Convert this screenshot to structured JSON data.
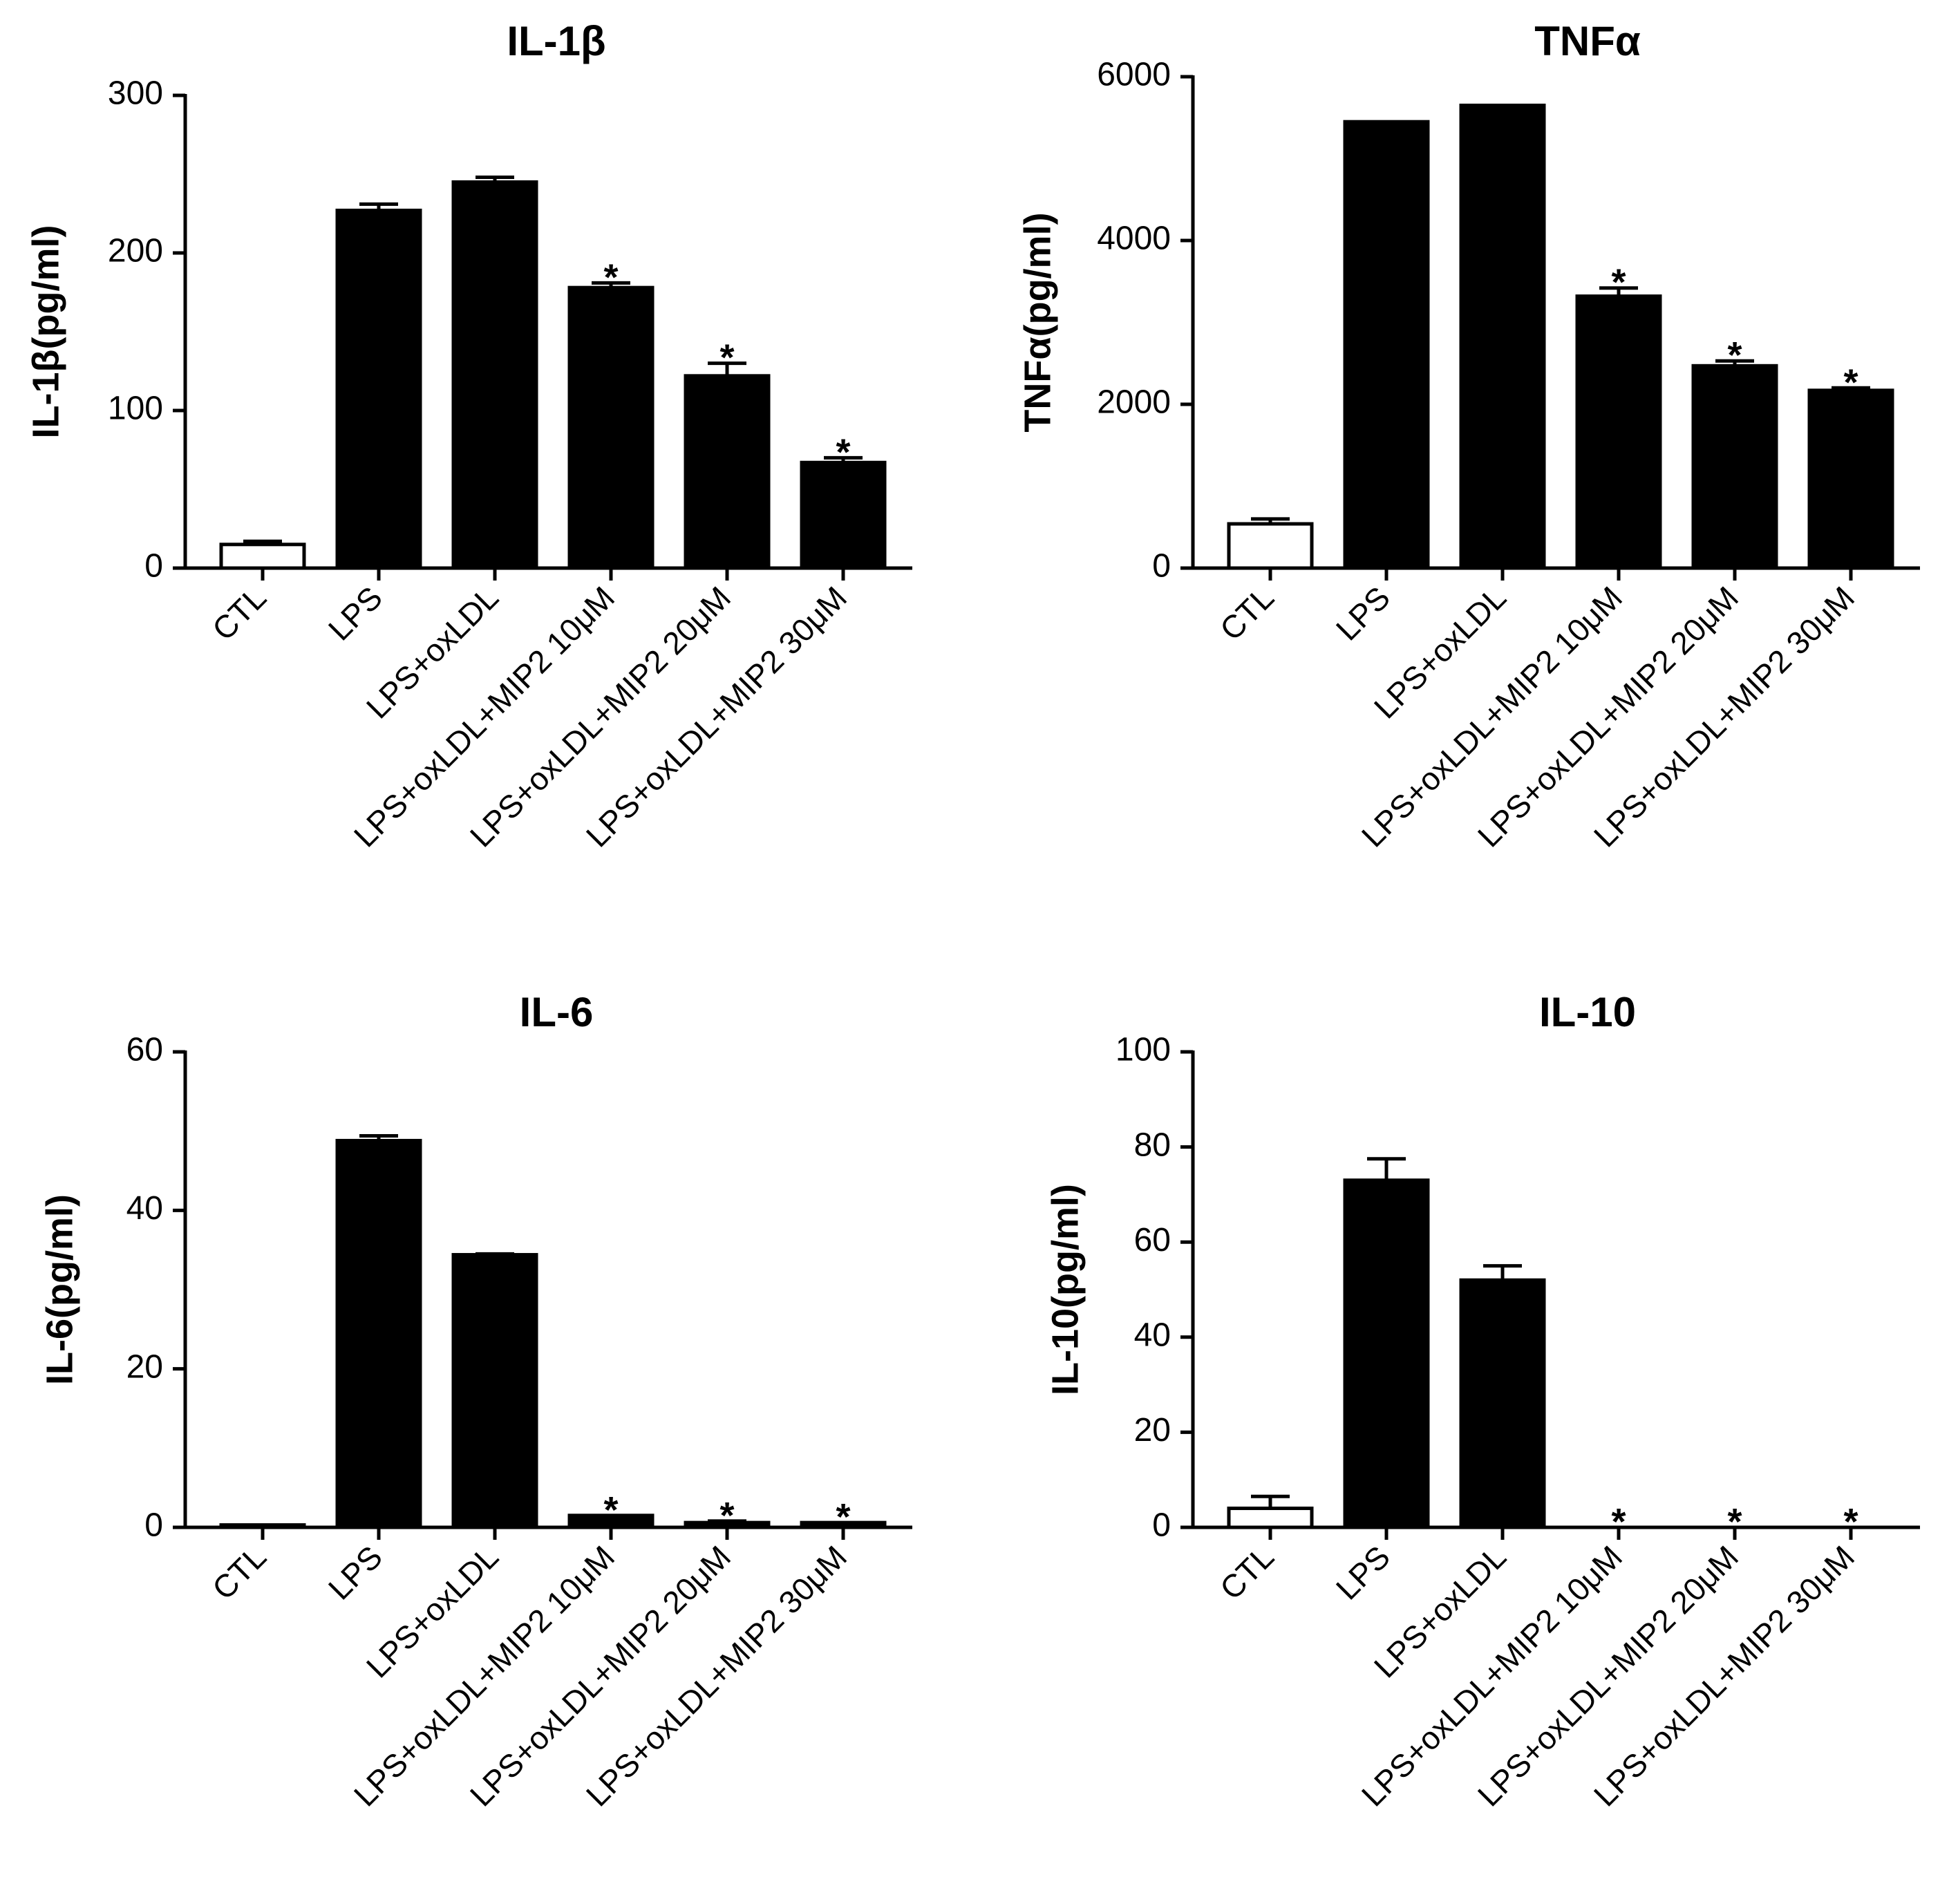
{
  "colors": {
    "bar": "#000000",
    "control_bar_fill": "#ffffff",
    "axis": "#000000"
  },
  "chart_data": [
    {
      "type": "bar",
      "title": "IL-1β",
      "ylabel": "IL-1β(pg/ml)",
      "xlabel": "",
      "ylim": [
        0,
        300
      ],
      "yticks": [
        0,
        100,
        200,
        300
      ],
      "categories": [
        "CTL",
        "LPS",
        "LPS+oxLDL",
        "LPS+oxLDL+MIP2 10μM",
        "LPS+oxLDL+MIP2 20μM",
        "LPS+oxLDL+MIP2 30μM"
      ],
      "values": [
        15,
        227,
        245,
        178,
        122,
        67
      ],
      "errors": [
        2,
        4,
        3,
        3,
        8,
        3
      ],
      "significance": [
        "",
        "",
        "",
        "*",
        "*",
        "*"
      ],
      "hollow": [
        true,
        false,
        false,
        false,
        false,
        false
      ]
    },
    {
      "type": "bar",
      "title": "TNFα",
      "ylabel": "TNFα(pg/ml)",
      "xlabel": "",
      "ylim": [
        0,
        6000
      ],
      "yticks": [
        0,
        2000,
        4000,
        6000
      ],
      "categories": [
        "CTL",
        "LPS",
        "LPS+oxLDL",
        "LPS+oxLDL+MIP2 10μM",
        "LPS+oxLDL+MIP2 20μM",
        "LPS+oxLDL+MIP2 30μM"
      ],
      "values": [
        540,
        5450,
        5650,
        3320,
        2470,
        2170
      ],
      "errors": [
        60,
        0,
        0,
        100,
        60,
        30
      ],
      "significance": [
        "",
        "",
        "",
        "*",
        "*",
        "*"
      ],
      "hollow": [
        true,
        false,
        false,
        false,
        false,
        false
      ]
    },
    {
      "type": "bar",
      "title": "IL-6",
      "ylabel": "IL-6(pg/ml)",
      "xlabel": "",
      "ylim": [
        0,
        60
      ],
      "yticks": [
        0,
        20,
        40,
        60
      ],
      "categories": [
        "CTL",
        "LPS",
        "LPS+oxLDL",
        "LPS+oxLDL+MIP2 10μM",
        "LPS+oxLDL+MIP2 20μM",
        "LPS+oxLDL+MIP2 30μM"
      ],
      "values": [
        0.3,
        48.8,
        34.4,
        1.5,
        0.6,
        0.6
      ],
      "errors": [
        0,
        0.6,
        0.1,
        0,
        0.2,
        0
      ],
      "significance": [
        "",
        "",
        "",
        "*",
        "*",
        "*"
      ],
      "hollow": [
        true,
        false,
        false,
        false,
        false,
        false
      ]
    },
    {
      "type": "bar",
      "title": "IL-10",
      "ylabel": "IL-10(pg/ml)",
      "xlabel": "",
      "ylim": [
        0,
        100
      ],
      "yticks": [
        0,
        20,
        40,
        60,
        80,
        100
      ],
      "categories": [
        "CTL",
        "LPS",
        "LPS+oxLDL",
        "LPS+oxLDL+MIP2 10μM",
        "LPS+oxLDL+MIP2 20μM",
        "LPS+oxLDL+MIP2 30μM"
      ],
      "values": [
        4,
        73,
        52,
        0,
        0,
        0
      ],
      "errors": [
        2.5,
        4.5,
        3,
        0,
        0,
        0
      ],
      "significance": [
        "",
        "",
        "",
        "*",
        "*",
        "*"
      ],
      "hollow": [
        true,
        false,
        false,
        false,
        false,
        false
      ]
    }
  ]
}
